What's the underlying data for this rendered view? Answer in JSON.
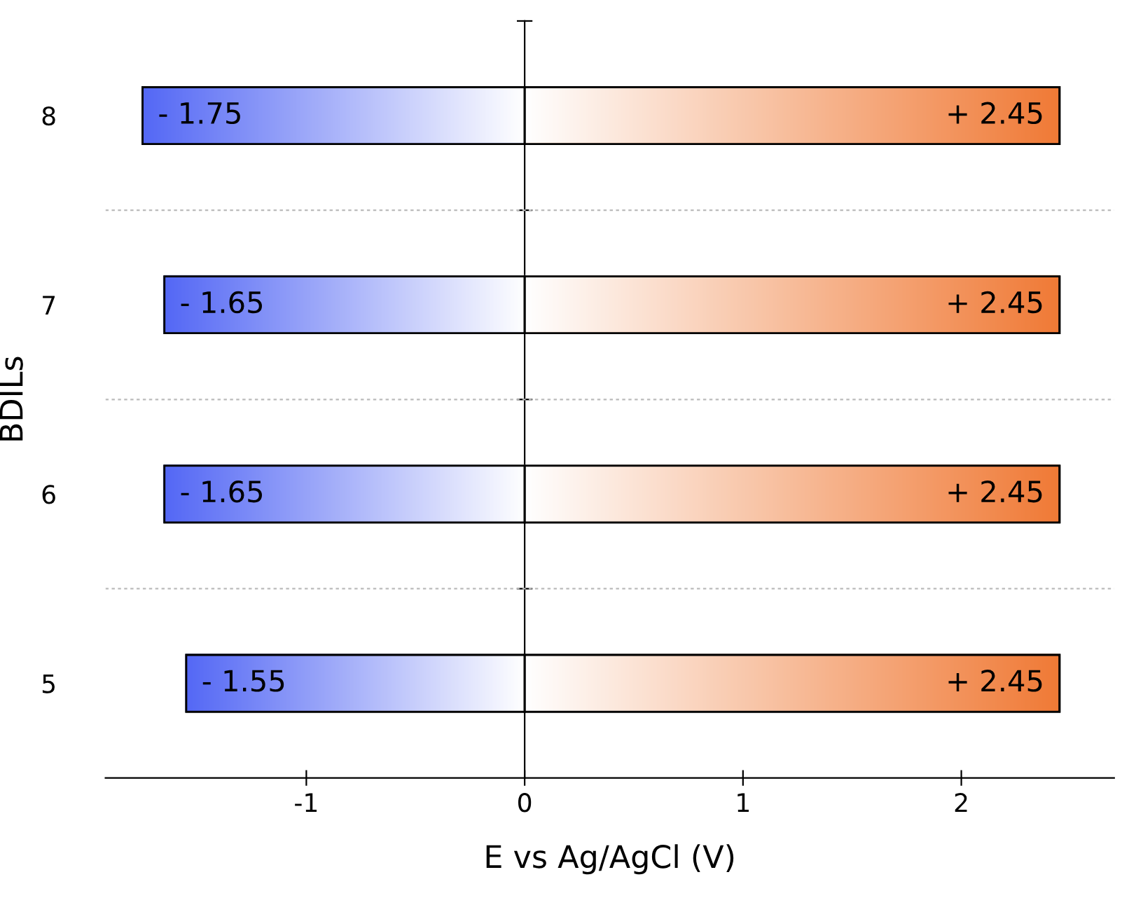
{
  "chart_data": {
    "type": "bar",
    "orientation": "horizontal",
    "stacked": true,
    "xlabel": "E vs Ag/AgCl (V)",
    "ylabel": "BDILs",
    "categories": [
      "8",
      "7",
      "6",
      "5"
    ],
    "series": [
      {
        "color": "#5468f5",
        "values": [
          -1.75,
          -1.65,
          -1.65,
          -1.55
        ],
        "value_labels": [
          "- 1.75",
          "- 1.65",
          "- 1.65",
          "- 1.55"
        ]
      },
      {
        "color": "#f07a36",
        "values": [
          2.45,
          2.45,
          2.45,
          2.45
        ],
        "value_labels": [
          "+ 2.45",
          "+ 2.45",
          "+ 2.45",
          "+ 2.45"
        ]
      }
    ],
    "xlim": [
      -1.92,
      2.7
    ],
    "xticks": [
      -1,
      0,
      1,
      2
    ],
    "grid": "y",
    "legend": false
  }
}
